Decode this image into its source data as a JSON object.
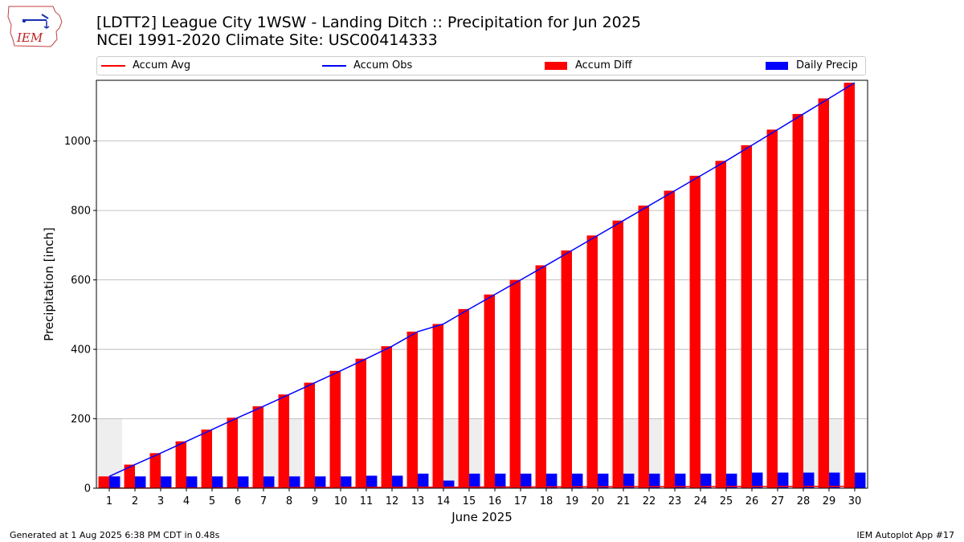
{
  "logo": {
    "text": "IEM",
    "icon": "iowa-state-outline-icon"
  },
  "title": {
    "line1": "[LDTT2] League City 1WSW - Landing Ditch :: Precipitation for Jun 2025",
    "line2": "NCEI 1991-2020 Climate Site: USC00414333"
  },
  "legend": {
    "accum_avg": "Accum Avg",
    "accum_obs": "Accum Obs",
    "accum_diff": "Accum Diff",
    "daily_precip": "Daily Precip"
  },
  "footer": {
    "left": "Generated at 1 Aug 2025 6:38 PM CDT in 0.48s",
    "right": "IEM Autoplot App #17"
  },
  "colors": {
    "accum_avg": "#ff0000",
    "accum_obs": "#0000ff",
    "accum_diff": "#ff0000",
    "daily_precip": "#0000ff",
    "weekend_shade": "#eeeeee",
    "grid": "#b0b0b0"
  },
  "chart_data": {
    "type": "bar",
    "xlabel": "June 2025",
    "ylabel": "Precipitation [inch]",
    "ylim": [
      0,
      1175
    ],
    "yticks": [
      0,
      200,
      400,
      600,
      800,
      1000
    ],
    "grid": "horizontal",
    "legend_placement": "top",
    "categories": [
      "1",
      "2",
      "3",
      "4",
      "5",
      "6",
      "7",
      "8",
      "9",
      "10",
      "11",
      "12",
      "13",
      "14",
      "15",
      "16",
      "17",
      "18",
      "19",
      "20",
      "21",
      "22",
      "23",
      "24",
      "25",
      "26",
      "27",
      "28",
      "29",
      "30"
    ],
    "weekend_shade_days": [
      1,
      7,
      8,
      14,
      15,
      21,
      22,
      28,
      29
    ],
    "weekend_shade_height": 200,
    "series": [
      {
        "name": "Accum Diff",
        "kind": "bar",
        "values": [
          34,
          68,
          101,
          135,
          169,
          203,
          236,
          270,
          304,
          338,
          373,
          409,
          451,
          473,
          516,
          558,
          600,
          642,
          685,
          728,
          771,
          814,
          857,
          900,
          943,
          988,
          1033,
          1078,
          1123,
          1168
        ]
      },
      {
        "name": "Daily Precip",
        "kind": "bar",
        "values": [
          34,
          34,
          34,
          34,
          34,
          34,
          34,
          34,
          34,
          34,
          36,
          36,
          42,
          22,
          42,
          42,
          42,
          42,
          42,
          42,
          42,
          42,
          42,
          42,
          42,
          45,
          45,
          45,
          45,
          45
        ]
      },
      {
        "name": "Accum Obs",
        "kind": "line",
        "values": [
          34,
          68,
          101,
          135,
          169,
          203,
          236,
          270,
          304,
          338,
          373,
          409,
          451,
          473,
          516,
          558,
          600,
          642,
          685,
          728,
          771,
          814,
          857,
          900,
          943,
          988,
          1033,
          1078,
          1123,
          1168
        ]
      },
      {
        "name": "Accum Avg",
        "kind": "line",
        "values": [
          0.2,
          0.4,
          0.6,
          0.8,
          1.0,
          1.3,
          1.5,
          1.8,
          2.0,
          2.2,
          2.4,
          2.6,
          2.8,
          3.0,
          3.2,
          3.4,
          3.6,
          3.8,
          4.0,
          4.2,
          4.4,
          4.5,
          4.6,
          4.7,
          4.8,
          4.9,
          5.0,
          5.1,
          5.2,
          5.3
        ]
      }
    ]
  }
}
